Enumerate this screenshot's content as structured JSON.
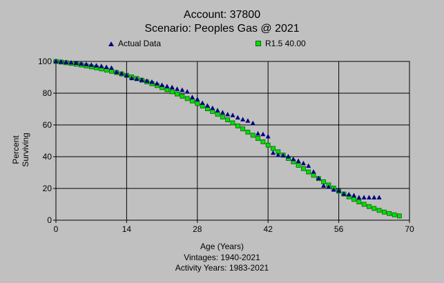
{
  "title_line1": "Account: 37800",
  "title_line2": "Scenario: Peoples Gas @ 2021",
  "vintages": "Vintages: 1940-2021",
  "activity_years": "Activity Years: 1983-2021",
  "colors": {
    "background": "#c0c0c0",
    "actual": "#000080",
    "fit": "#00e000",
    "grid": "#000000"
  },
  "chart_data": {
    "type": "scatter",
    "xlabel": "Age (Years)",
    "ylabel": "Percent Surviving",
    "xlim": [
      0,
      70
    ],
    "ylim": [
      0,
      100
    ],
    "xticks": [
      0,
      14,
      28,
      42,
      56,
      70
    ],
    "yticks": [
      0,
      20,
      40,
      60,
      80,
      100
    ],
    "grid": true,
    "legend_position": "top",
    "series": [
      {
        "name": "Actual Data",
        "marker": "triangle",
        "x": [
          0,
          1,
          2,
          3,
          4,
          5,
          6,
          7,
          8,
          9,
          10,
          11,
          12,
          13,
          14,
          15,
          16,
          17,
          18,
          19,
          20,
          21,
          22,
          23,
          24,
          25,
          26,
          27,
          28,
          29,
          30,
          31,
          32,
          33,
          34,
          35,
          36,
          37,
          38,
          39,
          40,
          41,
          42,
          43,
          44,
          45,
          46,
          47,
          48,
          49,
          50,
          51,
          52,
          53,
          54,
          55,
          56,
          57,
          58,
          59,
          60,
          61,
          62,
          63,
          64
        ],
        "y": [
          100,
          99.7,
          99.4,
          99.2,
          98.9,
          98.5,
          98.1,
          97.7,
          97.3,
          96.9,
          96.3,
          95.8,
          93.2,
          92.3,
          91.2,
          89.3,
          88.8,
          88.2,
          87.6,
          87,
          86,
          85,
          84.2,
          83.6,
          82.5,
          81.9,
          80.8,
          77.3,
          76.1,
          73.7,
          72,
          70.5,
          69,
          67.7,
          66.5,
          66,
          64.5,
          63.3,
          62.5,
          61,
          54.4,
          54,
          52.6,
          42.3,
          40.9,
          40.6,
          40,
          38.3,
          37.2,
          35.7,
          34.1,
          30.4,
          26.3,
          21.6,
          20.8,
          19.1,
          18.5,
          16.4,
          16.1,
          15.5,
          14.2,
          14.2,
          14.2,
          14.2,
          14.2
        ]
      },
      {
        "name": "R1.5 40.00",
        "marker": "square",
        "x": [
          0,
          1,
          2,
          3,
          4,
          5,
          6,
          7,
          8,
          9,
          10,
          11,
          12,
          13,
          14,
          15,
          16,
          17,
          18,
          19,
          20,
          21,
          22,
          23,
          24,
          25,
          26,
          27,
          28,
          29,
          30,
          31,
          32,
          33,
          34,
          35,
          36,
          37,
          38,
          39,
          40,
          41,
          42,
          43,
          44,
          45,
          46,
          47,
          48,
          49,
          50,
          51,
          52,
          53,
          54,
          55,
          56,
          57,
          58,
          59,
          60,
          61,
          62,
          63,
          64,
          65,
          66,
          67,
          68
        ],
        "y": [
          100,
          99.6,
          99.2,
          98.8,
          98.3,
          97.8,
          97.2,
          96.6,
          96,
          95.3,
          94.6,
          93.8,
          93,
          92.1,
          91.2,
          90.2,
          89.2,
          88.2,
          87.1,
          86,
          84.8,
          83.5,
          82.2,
          80.9,
          79.5,
          78.1,
          76.6,
          75.1,
          73.5,
          71.9,
          70.2,
          68.5,
          66.8,
          65,
          63.2,
          61.3,
          59.4,
          57.5,
          55.5,
          53.5,
          51.5,
          49.4,
          47.3,
          45.2,
          43.1,
          41,
          38.9,
          36.8,
          34.6,
          32.5,
          30.4,
          28.3,
          26.2,
          24.2,
          22.2,
          20.2,
          18.3,
          16.5,
          14.7,
          13.1,
          11.5,
          10,
          8.6,
          7.4,
          6.2,
          5.1,
          4.2,
          3.4,
          2.7
        ]
      }
    ]
  }
}
